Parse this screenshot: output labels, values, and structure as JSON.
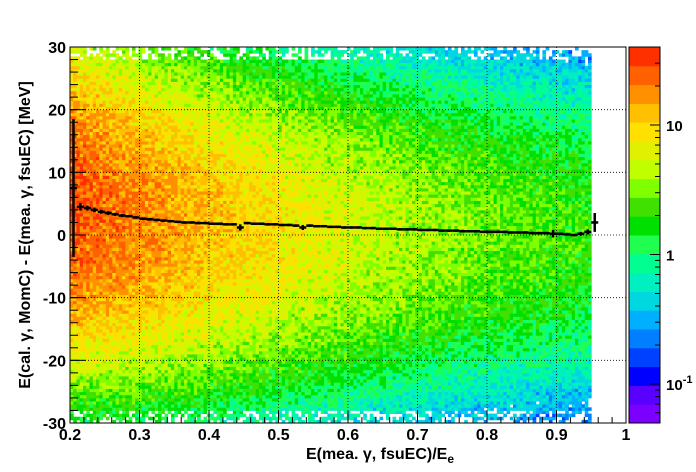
{
  "chart_data": {
    "type": "heatmap",
    "title": "",
    "xlabel": "E(mea. γ, fsuEC)/E_e",
    "xlabel_parts": {
      "main": "E(mea. γ, fsuEC)/E",
      "sub": "e"
    },
    "ylabel": "E(cal. γ, MomC) - E(mea.  γ, fsuEC) [MeV]",
    "xlim": [
      0.2,
      1.0
    ],
    "ylim": [
      -30,
      30
    ],
    "x_ticks": [
      "0.2",
      "0.3",
      "0.4",
      "0.5",
      "0.6",
      "0.7",
      "0.8",
      "0.9",
      "1"
    ],
    "y_ticks": [
      "-30",
      "-20",
      "-10",
      "0",
      "10",
      "20",
      "30"
    ],
    "grid": true,
    "z_scale": "log",
    "z_range": [
      0.05,
      40
    ],
    "z_ticks": [
      {
        "value": 10,
        "label": "10"
      },
      {
        "value": 1,
        "label": "1"
      },
      {
        "value": 0.1,
        "label": "10",
        "sup": "-1"
      }
    ],
    "palette": [
      "#7b00ff",
      "#5a00ff",
      "#0000ff",
      "#0040ff",
      "#0080ff",
      "#00b0ff",
      "#00d8e0",
      "#00f0c0",
      "#00ff90",
      "#20ff50",
      "#00e000",
      "#40e000",
      "#80ff00",
      "#c0ff00",
      "#e0f000",
      "#ffe000",
      "#ffc000",
      "#ff9000",
      "#ff6000",
      "#ff3000"
    ],
    "profile": {
      "name": "mean",
      "x": [
        0.205,
        0.215,
        0.225,
        0.235,
        0.245,
        0.255,
        0.265,
        0.275,
        0.285,
        0.295,
        0.305,
        0.315,
        0.325,
        0.335,
        0.345,
        0.355,
        0.365,
        0.375,
        0.385,
        0.395,
        0.405,
        0.415,
        0.425,
        0.435,
        0.445,
        0.455,
        0.465,
        0.475,
        0.485,
        0.495,
        0.505,
        0.515,
        0.525,
        0.535,
        0.545,
        0.555,
        0.565,
        0.575,
        0.585,
        0.595,
        0.605,
        0.615,
        0.625,
        0.635,
        0.645,
        0.655,
        0.665,
        0.675,
        0.685,
        0.695,
        0.705,
        0.715,
        0.725,
        0.735,
        0.745,
        0.755,
        0.765,
        0.775,
        0.785,
        0.795,
        0.805,
        0.815,
        0.825,
        0.835,
        0.845,
        0.855,
        0.865,
        0.875,
        0.885,
        0.895,
        0.905,
        0.915,
        0.925,
        0.935,
        0.945,
        0.955
      ],
      "y": [
        7.5,
        4.5,
        4.3,
        4.0,
        3.7,
        3.5,
        3.3,
        3.1,
        3.0,
        2.8,
        2.6,
        2.5,
        2.4,
        2.3,
        2.2,
        2.1,
        2.0,
        2.0,
        1.9,
        1.9,
        1.8,
        1.8,
        1.7,
        1.7,
        1.2,
        1.9,
        1.8,
        1.8,
        1.7,
        1.7,
        1.6,
        1.6,
        1.5,
        1.2,
        1.5,
        1.4,
        1.4,
        1.3,
        1.3,
        1.2,
        1.2,
        1.2,
        1.1,
        1.1,
        1.0,
        1.0,
        1.0,
        0.9,
        0.9,
        0.9,
        0.8,
        0.8,
        0.8,
        0.7,
        0.7,
        0.7,
        0.6,
        0.6,
        0.6,
        0.5,
        0.5,
        0.5,
        0.5,
        0.4,
        0.4,
        0.4,
        0.3,
        0.3,
        0.3,
        0.2,
        0.2,
        0.1,
        0.0,
        0.2,
        0.5,
        2.0
      ],
      "err": [
        11.0,
        0.6,
        0.4,
        0.35,
        0.3,
        0.3,
        0.25,
        0.25,
        0.2,
        0.2,
        0.2,
        0.2,
        0.2,
        0.2,
        0.2,
        0.2,
        0.2,
        0.2,
        0.2,
        0.2,
        0.2,
        0.2,
        0.2,
        0.2,
        0.5,
        0.2,
        0.2,
        0.2,
        0.2,
        0.2,
        0.2,
        0.2,
        0.2,
        0.4,
        0.2,
        0.2,
        0.2,
        0.2,
        0.2,
        0.2,
        0.2,
        0.2,
        0.2,
        0.2,
        0.2,
        0.2,
        0.2,
        0.2,
        0.2,
        0.2,
        0.2,
        0.2,
        0.2,
        0.2,
        0.2,
        0.2,
        0.2,
        0.2,
        0.2,
        0.2,
        0.2,
        0.2,
        0.2,
        0.2,
        0.2,
        0.2,
        0.2,
        0.2,
        0.2,
        0.6,
        0.2,
        0.2,
        0.2,
        0.3,
        0.4,
        1.5
      ]
    }
  }
}
